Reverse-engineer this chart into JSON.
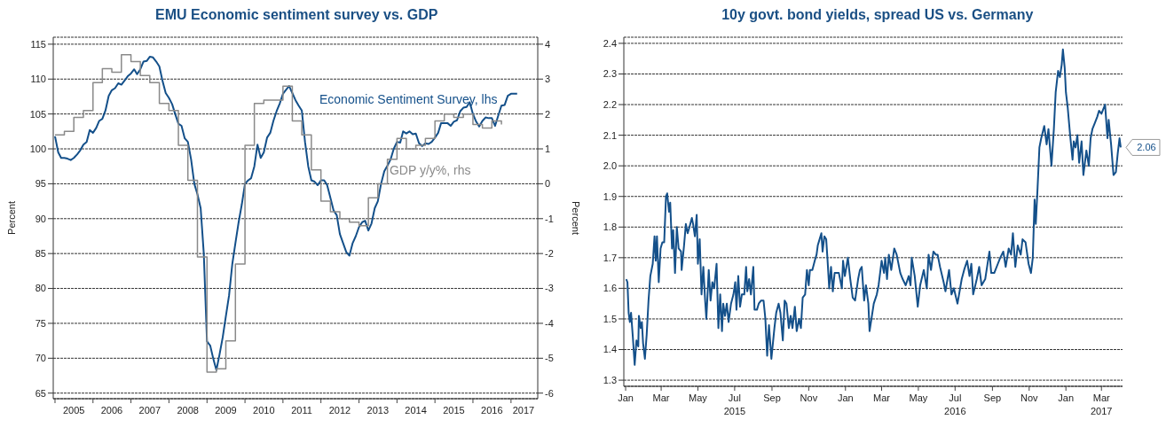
{
  "chart_data": [
    {
      "type": "line",
      "title": "EMU Economic sentiment survey vs. GDP",
      "ylabel": "Percent",
      "y2label": "Percent",
      "grid": "y",
      "xlim": [
        "2004-12-15",
        "2017-09-15"
      ],
      "xticks": [
        {
          "value": "2005",
          "label": null
        },
        {
          "value": "2005-07",
          "label": "2005"
        },
        {
          "value": "2006",
          "label": null
        },
        {
          "value": "2006-07",
          "label": "2006"
        },
        {
          "value": "2007",
          "label": null
        },
        {
          "value": "2007-07",
          "label": "2007"
        },
        {
          "value": "2008",
          "label": null
        },
        {
          "value": "2008-07",
          "label": "2008"
        },
        {
          "value": "2009",
          "label": null
        },
        {
          "value": "2009-07",
          "label": "2009"
        },
        {
          "value": "2010",
          "label": null
        },
        {
          "value": "2010-07",
          "label": "2010"
        },
        {
          "value": "2011",
          "label": null
        },
        {
          "value": "2011-07",
          "label": "2011"
        },
        {
          "value": "2012",
          "label": null
        },
        {
          "value": "2012-07",
          "label": "2012"
        },
        {
          "value": "2013",
          "label": null
        },
        {
          "value": "2013-07",
          "label": "2013"
        },
        {
          "value": "2014",
          "label": null
        },
        {
          "value": "2014-07",
          "label": "2014"
        },
        {
          "value": "2015",
          "label": null
        },
        {
          "value": "2015-07",
          "label": "2015"
        },
        {
          "value": "2016",
          "label": null
        },
        {
          "value": "2016-07",
          "label": "2016"
        },
        {
          "value": "2017",
          "label": null
        },
        {
          "value": "2017-05",
          "label": "2017"
        }
      ],
      "ylim": [
        64.2,
        116
      ],
      "yticks": [
        65,
        70,
        75,
        80,
        85,
        90,
        95,
        100,
        105,
        110,
        115
      ],
      "y2lim": [
        -6.16,
        4.2
      ],
      "y2ticks": [
        -6,
        -5,
        -4,
        -3,
        -2,
        -1,
        0,
        1,
        2,
        3,
        4
      ],
      "series": [
        {
          "name": "Economic Sentiment Survey, lhs",
          "type": "line",
          "color": "#14508a",
          "x": [
            "2005-01",
            "2005-02",
            "2005-03",
            "2005-04",
            "2005-05",
            "2005-06",
            "2005-07",
            "2005-08",
            "2005-09",
            "2005-10",
            "2005-11",
            "2005-12",
            "2006-01",
            "2006-02",
            "2006-03",
            "2006-04",
            "2006-05",
            "2006-06",
            "2006-07",
            "2006-08",
            "2006-09",
            "2006-10",
            "2006-11",
            "2006-12",
            "2007-01",
            "2007-02",
            "2007-03",
            "2007-04",
            "2007-05",
            "2007-06",
            "2007-07",
            "2007-08",
            "2007-09",
            "2007-10",
            "2007-11",
            "2007-12",
            "2008-01",
            "2008-02",
            "2008-03",
            "2008-04",
            "2008-05",
            "2008-06",
            "2008-07",
            "2008-08",
            "2008-09",
            "2008-10",
            "2008-11",
            "2008-12",
            "2009-01",
            "2009-02",
            "2009-03",
            "2009-04",
            "2009-05",
            "2009-06",
            "2009-07",
            "2009-08",
            "2009-09",
            "2009-10",
            "2009-11",
            "2009-12",
            "2010-01",
            "2010-02",
            "2010-03",
            "2010-04",
            "2010-05",
            "2010-06",
            "2010-07",
            "2010-08",
            "2010-09",
            "2010-10",
            "2010-11",
            "2010-12",
            "2011-01",
            "2011-02",
            "2011-03",
            "2011-04",
            "2011-05",
            "2011-06",
            "2011-07",
            "2011-08",
            "2011-09",
            "2011-10",
            "2011-11",
            "2011-12",
            "2012-01",
            "2012-02",
            "2012-03",
            "2012-04",
            "2012-05",
            "2012-06",
            "2012-07",
            "2012-08",
            "2012-09",
            "2012-10",
            "2012-11",
            "2012-12",
            "2013-01",
            "2013-02",
            "2013-03",
            "2013-04",
            "2013-05",
            "2013-06",
            "2013-07",
            "2013-08",
            "2013-09",
            "2013-10",
            "2013-11",
            "2013-12",
            "2014-01",
            "2014-02",
            "2014-03",
            "2014-04",
            "2014-05",
            "2014-06",
            "2014-07",
            "2014-08",
            "2014-09",
            "2014-10",
            "2014-11",
            "2014-12",
            "2015-01",
            "2015-02",
            "2015-03",
            "2015-04",
            "2015-05",
            "2015-06",
            "2015-07",
            "2015-08",
            "2015-09",
            "2015-10",
            "2015-11",
            "2015-12",
            "2016-01",
            "2016-02",
            "2016-03",
            "2016-04",
            "2016-05",
            "2016-06",
            "2016-07",
            "2016-08",
            "2016-09",
            "2016-10",
            "2016-11",
            "2016-12",
            "2017-01",
            "2017-02",
            "2017-03"
          ],
          "values": [
            101.8,
            99.5,
            98.7,
            98.7,
            98.6,
            98.4,
            98.7,
            99.2,
            99.8,
            100.6,
            101,
            102.7,
            102.3,
            103,
            104,
            104.3,
            105.5,
            107.6,
            108.4,
            108.7,
            109.4,
            109.2,
            109.8,
            110.4,
            110.8,
            111.4,
            110.7,
            111.4,
            112.5,
            112.6,
            113.2,
            113.1,
            112.5,
            111.8,
            109.7,
            108,
            107.3,
            106.4,
            105,
            103.6,
            103.3,
            101.5,
            101,
            98.5,
            95,
            93.5,
            91.5,
            85,
            72.4,
            71.8,
            70,
            68.3,
            70.5,
            73,
            76,
            79,
            83.5,
            86.5,
            89.5,
            92,
            95,
            95.5,
            95.8,
            97.5,
            100.6,
            98.7,
            99.5,
            101.6,
            102.3,
            104,
            105.4,
            106.5,
            107.9,
            108.5,
            109,
            108,
            107,
            106.2,
            105.5,
            101,
            97.5,
            95.5,
            95.3,
            94.8,
            95.5,
            95.5,
            94.8,
            93,
            91.2,
            90.5,
            87.8,
            86.5,
            85.2,
            84.7,
            86.5,
            87.5,
            88.8,
            89.5,
            89.7,
            88.3,
            89.3,
            91.5,
            92.5,
            95,
            96.8,
            97.6,
            98.5,
            100,
            101,
            100.9,
            102.5,
            102.2,
            102.5,
            102.1,
            102.2,
            100.8,
            100.4,
            100.8,
            100.7,
            101,
            101.6,
            102.3,
            103.7,
            103.7,
            103.7,
            103.3,
            103.9,
            104.1,
            105.4,
            105.9,
            106,
            106.7,
            105,
            103.9,
            103.2,
            104,
            104.5,
            104.4,
            104.4,
            103.3,
            104.8,
            106.2,
            106.3,
            107.6,
            107.9,
            107.9,
            107.9
          ]
        },
        {
          "name": "GDP y/y%, rhs",
          "type": "step",
          "axis": "y2",
          "color": "#8a8a8a",
          "x": [
            "2005-01",
            "2005-04",
            "2005-07",
            "2005-10",
            "2006-01",
            "2006-04",
            "2006-07",
            "2006-10",
            "2007-01",
            "2007-04",
            "2007-07",
            "2007-10",
            "2008-01",
            "2008-04",
            "2008-07",
            "2008-10",
            "2009-01",
            "2009-04",
            "2009-07",
            "2009-10",
            "2010-01",
            "2010-04",
            "2010-07",
            "2010-10",
            "2011-01",
            "2011-04",
            "2011-07",
            "2011-10",
            "2012-01",
            "2012-04",
            "2012-07",
            "2012-10",
            "2013-01",
            "2013-04",
            "2013-07",
            "2013-10",
            "2014-01",
            "2014-04",
            "2014-07",
            "2014-10",
            "2015-01",
            "2015-04",
            "2015-07",
            "2015-10",
            "2016-01",
            "2016-04",
            "2016-07",
            "2016-10"
          ],
          "values": [
            1.4,
            1.5,
            1.9,
            2.1,
            2.9,
            3.3,
            3.2,
            3.7,
            3.5,
            3.1,
            2.9,
            2.3,
            2.1,
            1.1,
            0.1,
            -2.1,
            -5.4,
            -5.3,
            -4.5,
            -2.3,
            1.1,
            2.3,
            2.4,
            2.4,
            2.8,
            1.8,
            1.4,
            0.4,
            -0.5,
            -0.8,
            -1.0,
            -1.1,
            -1.2,
            -0.4,
            0.0,
            0.7,
            1.3,
            1.0,
            1.1,
            1.3,
            1.8,
            2.0,
            1.9,
            2.0,
            1.7,
            1.6,
            1.8,
            1.7
          ]
        }
      ]
    },
    {
      "type": "line",
      "title": "10y govt. bond yields, spread US vs. Germany",
      "grid": "y",
      "xlim": [
        "2014-12-29",
        "2017-04-05"
      ],
      "xticks": [
        {
          "value": "2015-01-01",
          "label": "Jan"
        },
        {
          "value": "2015-03-01",
          "label": "Mar"
        },
        {
          "value": "2015-05-01",
          "label": "May"
        },
        {
          "value": "2015-07-01",
          "label": "Jul\n2015"
        },
        {
          "value": "2015-09-01",
          "label": "Sep"
        },
        {
          "value": "2015-11-01",
          "label": "Nov"
        },
        {
          "value": "2016-01-01",
          "label": "Jan"
        },
        {
          "value": "2016-03-01",
          "label": "Mar"
        },
        {
          "value": "2016-05-01",
          "label": "May"
        },
        {
          "value": "2016-07-01",
          "label": "Jul\n2016"
        },
        {
          "value": "2016-09-01",
          "label": "Sep"
        },
        {
          "value": "2016-11-01",
          "label": "Nov"
        },
        {
          "value": "2017-01-01",
          "label": "Jan"
        },
        {
          "value": "2017-03-01",
          "label": "Mar\n2017"
        }
      ],
      "ylim": [
        1.28,
        2.42
      ],
      "yticks": [
        1.3,
        1.4,
        1.5,
        1.6,
        1.7,
        1.8,
        1.9,
        {
          "value": 2,
          "label": "2.0"
        },
        2.1,
        2.2,
        2.3,
        2.4
      ],
      "annotations": [
        {
          "text": "2.06",
          "x": "2017-04-02",
          "y": 2.06
        }
      ],
      "series": [
        {
          "type": "line",
          "color": "#14508a",
          "x": [
            "2015-01-02",
            "2015-01-04",
            "2015-01-06",
            "2015-01-08",
            "2015-01-10",
            "2015-01-13",
            "2015-01-16",
            "2015-01-19",
            "2015-01-22",
            "2015-01-23",
            "2015-01-26",
            "2015-01-28",
            "2015-01-30",
            "2015-02-02",
            "2015-02-05",
            "2015-02-08",
            "2015-02-11",
            "2015-02-15",
            "2015-02-18",
            "2015-02-20",
            "2015-02-22",
            "2015-02-25",
            "2015-02-28",
            "2015-03-03",
            "2015-03-06",
            "2015-03-09",
            "2015-03-11",
            "2015-03-14",
            "2015-03-16",
            "2015-03-19",
            "2015-03-21",
            "2015-03-24",
            "2015-03-27",
            "2015-03-30",
            "2015-04-03",
            "2015-04-04",
            "2015-04-08",
            "2015-04-11",
            "2015-04-14",
            "2015-04-17",
            "2015-04-21",
            "2015-04-23",
            "2015-04-26",
            "2015-04-29",
            "2015-05-01",
            "2015-05-04",
            "2015-05-07",
            "2015-05-10",
            "2015-05-13",
            "2015-05-15",
            "2015-05-19",
            "2015-05-22",
            "2015-05-25",
            "2015-05-28",
            "2015-06-01",
            "2015-06-04",
            "2015-06-07",
            "2015-06-10",
            "2015-06-12",
            "2015-06-15",
            "2015-06-18",
            "2015-06-21",
            "2015-06-25",
            "2015-06-29",
            "2015-07-02",
            "2015-07-04",
            "2015-07-07",
            "2015-07-10",
            "2015-07-13",
            "2015-07-17",
            "2015-07-20",
            "2015-07-22",
            "2015-07-25",
            "2015-07-28",
            "2015-08-01",
            "2015-08-03",
            "2015-08-07",
            "2015-08-10",
            "2015-08-14",
            "2015-08-18",
            "2015-08-21",
            "2015-08-24",
            "2015-08-27",
            "2015-08-31",
            "2015-09-05",
            "2015-09-08",
            "2015-09-12",
            "2015-09-15",
            "2015-09-19",
            "2015-09-22",
            "2015-09-25",
            "2015-09-29",
            "2015-10-02",
            "2015-10-05",
            "2015-10-09",
            "2015-10-12",
            "2015-10-16",
            "2015-10-19",
            "2015-10-22",
            "2015-10-26",
            "2015-10-29",
            "2015-11-01",
            "2015-11-03",
            "2015-11-07",
            "2015-11-11",
            "2015-11-14",
            "2015-11-16",
            "2015-11-19",
            "2015-11-22",
            "2015-11-24",
            "2015-11-27",
            "2015-11-30",
            "2015-12-02",
            "2015-12-05",
            "2015-12-08",
            "2015-12-11",
            "2015-12-14",
            "2015-12-17",
            "2015-12-21",
            "2015-12-26",
            "2015-12-28",
            "2015-12-31",
            "2016-01-05",
            "2016-01-09",
            "2016-01-13",
            "2016-01-17",
            "2016-01-22",
            "2016-01-25",
            "2016-01-28",
            "2016-02-01",
            "2016-02-04",
            "2016-02-08",
            "2016-02-10",
            "2016-02-17",
            "2016-02-22",
            "2016-02-25",
            "2016-03-01",
            "2016-03-05",
            "2016-03-07",
            "2016-03-10",
            "2016-03-13",
            "2016-03-17",
            "2016-03-22",
            "2016-03-26",
            "2016-04-01",
            "2016-04-05",
            "2016-04-10",
            "2016-04-15",
            "2016-04-18",
            "2016-04-20",
            "2016-04-25",
            "2016-04-30",
            "2016-05-04",
            "2016-05-10",
            "2016-05-15",
            "2016-05-18",
            "2016-05-22",
            "2016-05-26",
            "2016-05-30",
            "2016-06-02",
            "2016-06-06",
            "2016-06-12",
            "2016-06-15",
            "2016-06-21",
            "2016-06-25",
            "2016-06-29",
            "2016-07-05",
            "2016-07-12",
            "2016-07-16",
            "2016-07-21",
            "2016-07-25",
            "2016-07-28",
            "2016-07-31",
            "2016-08-06",
            "2016-08-10",
            "2016-08-14",
            "2016-08-20",
            "2016-08-27",
            "2016-08-30",
            "2016-09-04",
            "2016-09-10",
            "2016-09-14",
            "2016-09-19",
            "2016-09-23",
            "2016-09-28",
            "2016-10-02",
            "2016-10-05",
            "2016-10-09",
            "2016-10-13",
            "2016-10-18",
            "2016-10-21",
            "2016-10-26",
            "2016-10-31",
            "2016-11-04",
            "2016-11-07",
            "2016-11-10",
            "2016-11-12",
            "2016-11-15",
            "2016-11-18",
            "2016-11-21",
            "2016-11-26",
            "2016-11-30",
            "2016-12-03",
            "2016-12-08",
            "2016-12-12",
            "2016-12-15",
            "2016-12-19",
            "2016-12-22",
            "2016-12-25",
            "2016-12-27",
            "2016-12-30",
            "2017-01-01",
            "2017-01-04",
            "2017-01-08",
            "2017-01-12",
            "2017-01-14",
            "2017-01-17",
            "2017-01-20",
            "2017-01-23",
            "2017-01-27",
            "2017-01-30",
            "2017-02-04",
            "2017-02-08",
            "2017-02-11",
            "2017-02-14",
            "2017-02-18",
            "2017-02-22",
            "2017-02-25",
            "2017-03-01",
            "2017-03-07",
            "2017-03-11",
            "2017-03-13",
            "2017-03-17",
            "2017-03-21",
            "2017-03-25",
            "2017-03-28",
            "2017-03-31",
            "2017-04-02"
          ],
          "values": [
            1.63,
            1.62,
            1.52,
            1.49,
            1.52,
            1.44,
            1.35,
            1.43,
            1.41,
            1.51,
            1.47,
            1.49,
            1.42,
            1.37,
            1.45,
            1.56,
            1.64,
            1.68,
            1.77,
            1.69,
            1.77,
            1.62,
            1.73,
            1.75,
            1.75,
            1.9,
            1.91,
            1.85,
            1.88,
            1.73,
            1.79,
            1.65,
            1.8,
            1.73,
            1.72,
            1.66,
            1.74,
            1.81,
            1.78,
            1.8,
            1.83,
            1.81,
            1.77,
            1.84,
            1.68,
            1.76,
            1.58,
            1.67,
            1.56,
            1.5,
            1.66,
            1.56,
            1.62,
            1.6,
            1.68,
            1.47,
            1.58,
            1.46,
            1.55,
            1.51,
            1.55,
            1.49,
            1.55,
            1.58,
            1.62,
            1.53,
            1.64,
            1.54,
            1.58,
            1.58,
            1.67,
            1.59,
            1.63,
            1.58,
            1.67,
            1.53,
            1.53,
            1.55,
            1.56,
            1.56,
            1.5,
            1.38,
            1.48,
            1.37,
            1.47,
            1.52,
            1.55,
            1.52,
            1.43,
            1.56,
            1.55,
            1.47,
            1.51,
            1.47,
            1.54,
            1.46,
            1.5,
            1.47,
            1.57,
            1.58,
            1.66,
            1.61,
            1.66,
            1.66,
            1.69,
            1.71,
            1.74,
            1.76,
            1.78,
            1.72,
            1.77,
            1.76,
            1.7,
            1.6,
            1.67,
            1.59,
            1.65,
            1.65,
            1.65,
            1.6,
            1.69,
            1.64,
            1.7,
            1.63,
            1.57,
            1.56,
            1.63,
            1.66,
            1.67,
            1.56,
            1.61,
            1.55,
            1.46,
            1.55,
            1.58,
            1.61,
            1.69,
            1.65,
            1.7,
            1.63,
            1.71,
            1.66,
            1.73,
            1.71,
            1.65,
            1.63,
            1.61,
            1.64,
            1.61,
            1.7,
            1.64,
            1.54,
            1.61,
            1.66,
            1.6,
            1.71,
            1.66,
            1.72,
            1.71,
            1.71,
            1.67,
            1.62,
            1.59,
            1.66,
            1.58,
            1.6,
            1.55,
            1.63,
            1.66,
            1.69,
            1.64,
            1.68,
            1.58,
            1.63,
            1.67,
            1.61,
            1.63,
            1.72,
            1.65,
            1.65,
            1.68,
            1.7,
            1.72,
            1.67,
            1.73,
            1.71,
            1.78,
            1.67,
            1.74,
            1.71,
            1.76,
            1.75,
            1.68,
            1.65,
            1.7,
            1.89,
            1.81,
            1.93,
            2.06,
            2.09,
            2.13,
            2.07,
            2.12,
            2.0,
            2.12,
            2.24,
            2.31,
            2.29,
            2.33,
            2.38,
            2.32,
            2.24,
            2.19,
            2.1,
            2.02,
            2.08,
            2.06,
            2.1,
            2.01,
            2.08,
            1.97,
            2.05,
            2.0,
            2.09,
            2.12,
            2.14,
            2.16,
            2.18,
            2.17,
            2.2,
            2.09,
            2.15,
            2.07,
            1.97,
            1.98,
            2.04,
            2.09,
            2.06
          ]
        }
      ]
    }
  ]
}
